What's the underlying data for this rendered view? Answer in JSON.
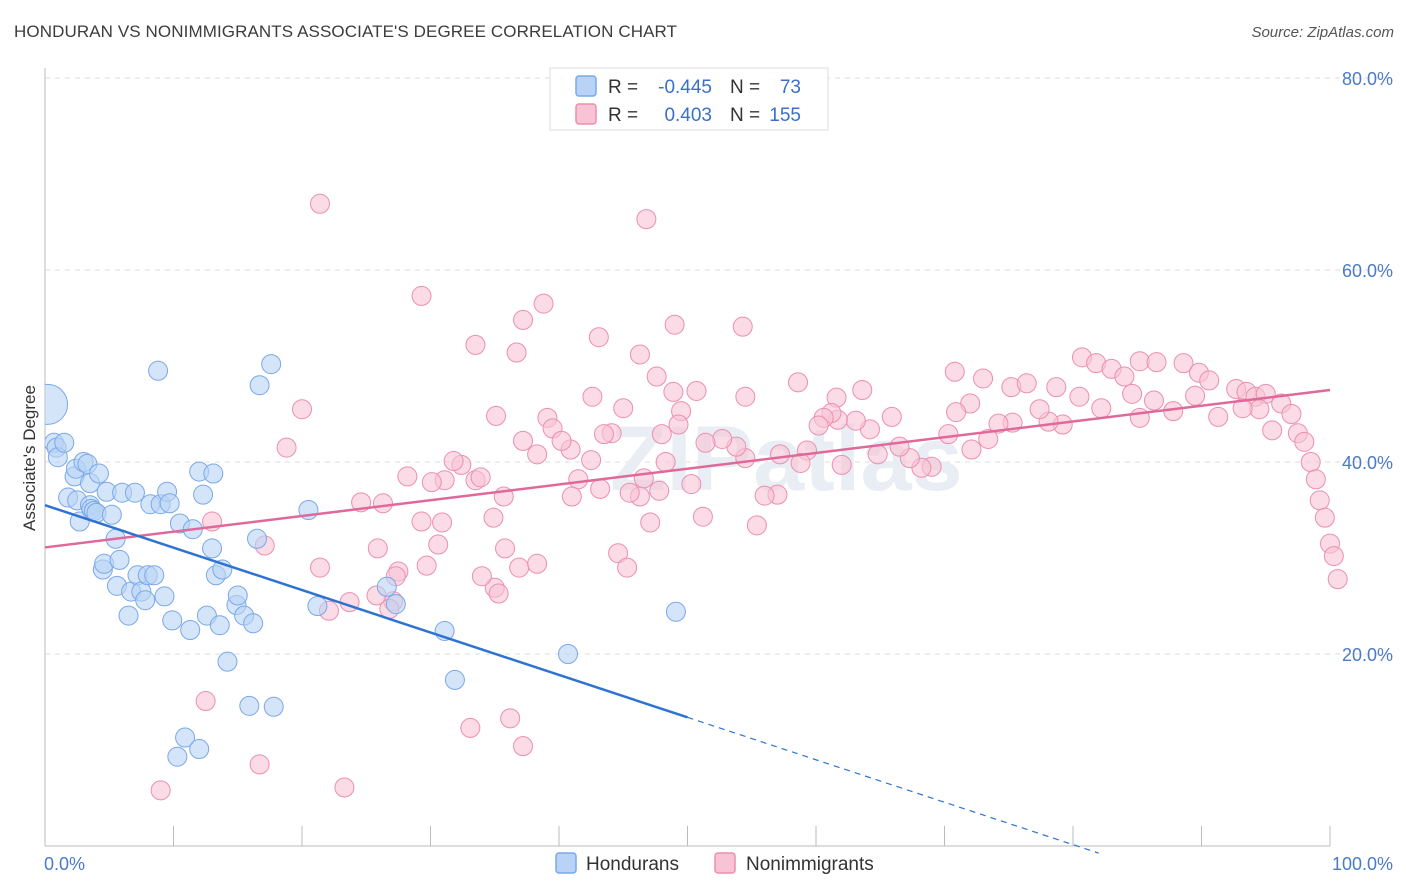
{
  "title": "HONDURAN VS NONIMMIGRANTS ASSOCIATE'S DEGREE CORRELATION CHART",
  "source": "Source: ZipAtlas.com",
  "watermark": "ZIPatlas",
  "colors": {
    "hondurans_fill": "#b8d3f5",
    "hondurans_stroke": "#7aa8e8",
    "hondurans_line": "#2f73d2",
    "nonimm_fill": "#f8c3d4",
    "nonimm_stroke": "#ec8fb0",
    "nonimm_line": "#e0689a",
    "axis_text": "#4a7ac9",
    "grid": "#dddddd"
  },
  "legend": {
    "rows": [
      {
        "r_label": "R =",
        "r_value": "-0.445",
        "n_label": "N =",
        "n_value": "73"
      },
      {
        "r_label": "R =",
        "r_value": "0.403",
        "n_label": "N =",
        "n_value": "155"
      }
    ]
  },
  "bottom_legend": [
    "Hondurans",
    "Nonimmigrants"
  ],
  "chart_data": {
    "type": "scatter",
    "title": "HONDURAN VS NONIMMIGRANTS ASSOCIATE'S DEGREE CORRELATION CHART",
    "xlabel": "",
    "ylabel": "Associate's Degree",
    "xlim": [
      0,
      100
    ],
    "ylim": [
      0,
      80
    ],
    "x_tick_labels": [
      "0.0%",
      "100.0%"
    ],
    "y_ticks": [
      20,
      40,
      60,
      80
    ],
    "y_tick_labels": [
      "20.0%",
      "40.0%",
      "60.0%",
      "80.0%"
    ],
    "grid": true,
    "series": [
      {
        "name": "Hondurans",
        "r": -0.445,
        "n": 73,
        "trend": {
          "x0": 0,
          "y0": 35.5,
          "x1": 50,
          "y1": 13.4,
          "dashed_to_x": 82
        },
        "points": [
          [
            0.2,
            46.0,
            3
          ],
          [
            0.7,
            42.0,
            1
          ],
          [
            0.9,
            41.5,
            1
          ],
          [
            1.0,
            40.5,
            1
          ],
          [
            1.5,
            42.0,
            1
          ],
          [
            1.8,
            36.3,
            1
          ],
          [
            2.3,
            38.5,
            1
          ],
          [
            2.4,
            39.3,
            1
          ],
          [
            2.5,
            36.0,
            1
          ],
          [
            2.7,
            33.8,
            1
          ],
          [
            3.0,
            40.0,
            1
          ],
          [
            3.3,
            39.8,
            1
          ],
          [
            3.5,
            37.8,
            1
          ],
          [
            3.5,
            35.5,
            1
          ],
          [
            3.6,
            35.1,
            1
          ],
          [
            3.8,
            34.9,
            1
          ],
          [
            4.0,
            34.7,
            1
          ],
          [
            4.2,
            38.8,
            1
          ],
          [
            4.5,
            28.8,
            1
          ],
          [
            4.6,
            29.4,
            1
          ],
          [
            4.8,
            36.9,
            1
          ],
          [
            5.2,
            34.5,
            1
          ],
          [
            5.5,
            32.0,
            1
          ],
          [
            5.6,
            27.1,
            1
          ],
          [
            5.8,
            29.8,
            1
          ],
          [
            6.0,
            36.8,
            1
          ],
          [
            6.5,
            24.0,
            1
          ],
          [
            6.7,
            26.5,
            1
          ],
          [
            7.0,
            36.8,
            1
          ],
          [
            7.2,
            28.2,
            1
          ],
          [
            7.5,
            26.5,
            1
          ],
          [
            7.8,
            25.6,
            1
          ],
          [
            8.0,
            28.2,
            1
          ],
          [
            8.2,
            35.6,
            1
          ],
          [
            8.5,
            28.2,
            1
          ],
          [
            8.8,
            49.5,
            1
          ],
          [
            9.0,
            35.6,
            1
          ],
          [
            9.3,
            26.0,
            1
          ],
          [
            9.5,
            36.9,
            1
          ],
          [
            9.7,
            35.7,
            1
          ],
          [
            9.9,
            23.5,
            1
          ],
          [
            10.5,
            33.6,
            1
          ],
          [
            11.3,
            22.5,
            1
          ],
          [
            11.5,
            33.0,
            1
          ],
          [
            12.0,
            39.0,
            1
          ],
          [
            12.3,
            36.6,
            1
          ],
          [
            12.6,
            24.0,
            1
          ],
          [
            13.0,
            31.0,
            1
          ],
          [
            13.1,
            38.8,
            1
          ],
          [
            13.3,
            28.2,
            1
          ],
          [
            13.6,
            23.0,
            1
          ],
          [
            13.8,
            28.8,
            1
          ],
          [
            14.2,
            19.2,
            1
          ],
          [
            14.9,
            25.1,
            1
          ],
          [
            15.0,
            26.1,
            1
          ],
          [
            15.5,
            24.0,
            1
          ],
          [
            15.9,
            14.6,
            1
          ],
          [
            16.2,
            23.2,
            1
          ],
          [
            16.5,
            32.0,
            1
          ],
          [
            16.7,
            48.0,
            1
          ],
          [
            17.6,
            50.2,
            1
          ],
          [
            17.8,
            14.5,
            1
          ],
          [
            20.5,
            35.0,
            1
          ],
          [
            21.2,
            25.0,
            1
          ],
          [
            26.6,
            27.0,
            1
          ],
          [
            27.3,
            25.2,
            1
          ],
          [
            31.1,
            22.4,
            1
          ],
          [
            31.9,
            17.3,
            1
          ],
          [
            10.9,
            11.3,
            1
          ],
          [
            12.0,
            10.1,
            1
          ],
          [
            10.3,
            9.3,
            1
          ],
          [
            40.7,
            20.0,
            1
          ],
          [
            49.1,
            24.4,
            1
          ]
        ]
      },
      {
        "name": "Nonimmigrants",
        "r": 0.403,
        "n": 155,
        "trend": {
          "x0": 0,
          "y0": 31.1,
          "x1": 100,
          "y1": 47.5
        },
        "points": [
          [
            21.4,
            66.9
          ],
          [
            46.8,
            65.3
          ],
          [
            29.3,
            57.3
          ],
          [
            38.8,
            56.5
          ],
          [
            37.2,
            54.8
          ],
          [
            33.5,
            52.2
          ],
          [
            36.7,
            51.4
          ],
          [
            43.1,
            53.0
          ],
          [
            49.0,
            54.3
          ],
          [
            54.3,
            54.1
          ],
          [
            46.3,
            51.2
          ],
          [
            47.6,
            48.9
          ],
          [
            50.7,
            47.4
          ],
          [
            54.5,
            46.8
          ],
          [
            58.6,
            48.3
          ],
          [
            61.6,
            46.7
          ],
          [
            63.6,
            47.5
          ],
          [
            73.0,
            48.7
          ],
          [
            72.0,
            46.1
          ],
          [
            70.8,
            49.4
          ],
          [
            75.2,
            47.8
          ],
          [
            76.4,
            48.2
          ],
          [
            78.7,
            47.8
          ],
          [
            80.7,
            50.9
          ],
          [
            81.8,
            50.3
          ],
          [
            83.0,
            49.7
          ],
          [
            84.0,
            48.9
          ],
          [
            85.2,
            50.5
          ],
          [
            86.5,
            50.4
          ],
          [
            88.6,
            50.3
          ],
          [
            89.8,
            49.3
          ],
          [
            90.6,
            48.5
          ],
          [
            92.7,
            47.6
          ],
          [
            93.5,
            47.3
          ],
          [
            94.2,
            46.8
          ],
          [
            95.0,
            47.1
          ],
          [
            96.2,
            46.1
          ],
          [
            97.0,
            45.0
          ],
          [
            97.5,
            43.0
          ],
          [
            98.0,
            42.1
          ],
          [
            98.5,
            40.0
          ],
          [
            98.9,
            38.2
          ],
          [
            99.2,
            36.0
          ],
          [
            99.6,
            34.2
          ],
          [
            100.0,
            31.5
          ],
          [
            100.3,
            30.2
          ],
          [
            100.6,
            27.8
          ],
          [
            95.5,
            43.3
          ],
          [
            94.5,
            45.5
          ],
          [
            93.2,
            45.6
          ],
          [
            91.3,
            44.7
          ],
          [
            89.5,
            46.9
          ],
          [
            87.8,
            45.3
          ],
          [
            86.3,
            46.4
          ],
          [
            85.2,
            44.6
          ],
          [
            84.6,
            47.1
          ],
          [
            82.2,
            45.6
          ],
          [
            80.5,
            46.8
          ],
          [
            79.2,
            43.9
          ],
          [
            78.1,
            44.2
          ],
          [
            77.4,
            45.5
          ],
          [
            75.3,
            44.1
          ],
          [
            74.2,
            44.0
          ],
          [
            73.4,
            42.4
          ],
          [
            72.1,
            41.3
          ],
          [
            70.9,
            45.2
          ],
          [
            70.3,
            42.9
          ],
          [
            69.0,
            39.5
          ],
          [
            68.2,
            39.4
          ],
          [
            67.3,
            40.4
          ],
          [
            66.5,
            41.6
          ],
          [
            65.9,
            44.7
          ],
          [
            64.8,
            40.8
          ],
          [
            64.2,
            43.4
          ],
          [
            63.1,
            44.3
          ],
          [
            62.0,
            39.7
          ],
          [
            61.7,
            44.4
          ],
          [
            61.2,
            45.1
          ],
          [
            60.6,
            44.6
          ],
          [
            60.2,
            43.8
          ],
          [
            59.3,
            41.2
          ],
          [
            58.8,
            39.9
          ],
          [
            57.2,
            40.8
          ],
          [
            57.0,
            36.6
          ],
          [
            56.0,
            36.5
          ],
          [
            55.4,
            33.4
          ],
          [
            54.5,
            40.4
          ],
          [
            53.8,
            41.6
          ],
          [
            52.7,
            42.4
          ],
          [
            51.4,
            42.0
          ],
          [
            51.2,
            34.3
          ],
          [
            50.3,
            37.7
          ],
          [
            49.5,
            45.3
          ],
          [
            49.3,
            43.9
          ],
          [
            48.9,
            47.3
          ],
          [
            48.0,
            42.9
          ],
          [
            47.1,
            33.7
          ],
          [
            46.3,
            36.4
          ],
          [
            45.5,
            36.8
          ],
          [
            45.0,
            45.6
          ],
          [
            44.1,
            43.0
          ],
          [
            43.5,
            42.9
          ],
          [
            42.6,
            46.8
          ],
          [
            41.5,
            38.2
          ],
          [
            40.9,
            41.3
          ],
          [
            39.1,
            44.6
          ],
          [
            38.3,
            40.8
          ],
          [
            37.2,
            42.2
          ],
          [
            35.7,
            36.4
          ],
          [
            35.1,
            44.8
          ],
          [
            35.0,
            26.9
          ],
          [
            34.0,
            28.1
          ],
          [
            33.5,
            38.1
          ],
          [
            32.4,
            39.7
          ],
          [
            31.1,
            38.1
          ],
          [
            30.6,
            31.4
          ],
          [
            29.7,
            29.2
          ],
          [
            28.2,
            38.5
          ],
          [
            27.5,
            28.6
          ],
          [
            27.1,
            25.5
          ],
          [
            26.8,
            24.7
          ],
          [
            26.3,
            35.7
          ],
          [
            25.8,
            26.1
          ],
          [
            25.9,
            31.0
          ],
          [
            24.6,
            35.8
          ],
          [
            23.7,
            25.4
          ],
          [
            22.1,
            24.5
          ],
          [
            21.4,
            29.0
          ],
          [
            20.0,
            45.5
          ],
          [
            18.8,
            41.5
          ],
          [
            17.1,
            31.3
          ],
          [
            13.0,
            33.8
          ],
          [
            12.5,
            15.1
          ],
          [
            16.7,
            8.5
          ],
          [
            9.0,
            5.8
          ],
          [
            23.3,
            6.1
          ],
          [
            33.1,
            12.3
          ],
          [
            36.2,
            13.3
          ],
          [
            37.2,
            10.4
          ],
          [
            35.3,
            26.3
          ],
          [
            35.8,
            31.0
          ],
          [
            36.9,
            29.0
          ],
          [
            27.3,
            28.1
          ],
          [
            29.3,
            33.8
          ],
          [
            30.1,
            37.9
          ],
          [
            30.9,
            33.7
          ],
          [
            31.8,
            40.1
          ],
          [
            33.9,
            38.4
          ],
          [
            34.9,
            34.2
          ],
          [
            38.3,
            29.4
          ],
          [
            39.5,
            43.5
          ],
          [
            40.2,
            42.2
          ],
          [
            41.0,
            36.4
          ],
          [
            42.5,
            40.2
          ],
          [
            43.2,
            37.2
          ],
          [
            44.6,
            30.5
          ],
          [
            45.3,
            29.0
          ],
          [
            46.6,
            38.3
          ],
          [
            47.8,
            37.0
          ],
          [
            48.3,
            40.0
          ]
        ]
      }
    ]
  }
}
